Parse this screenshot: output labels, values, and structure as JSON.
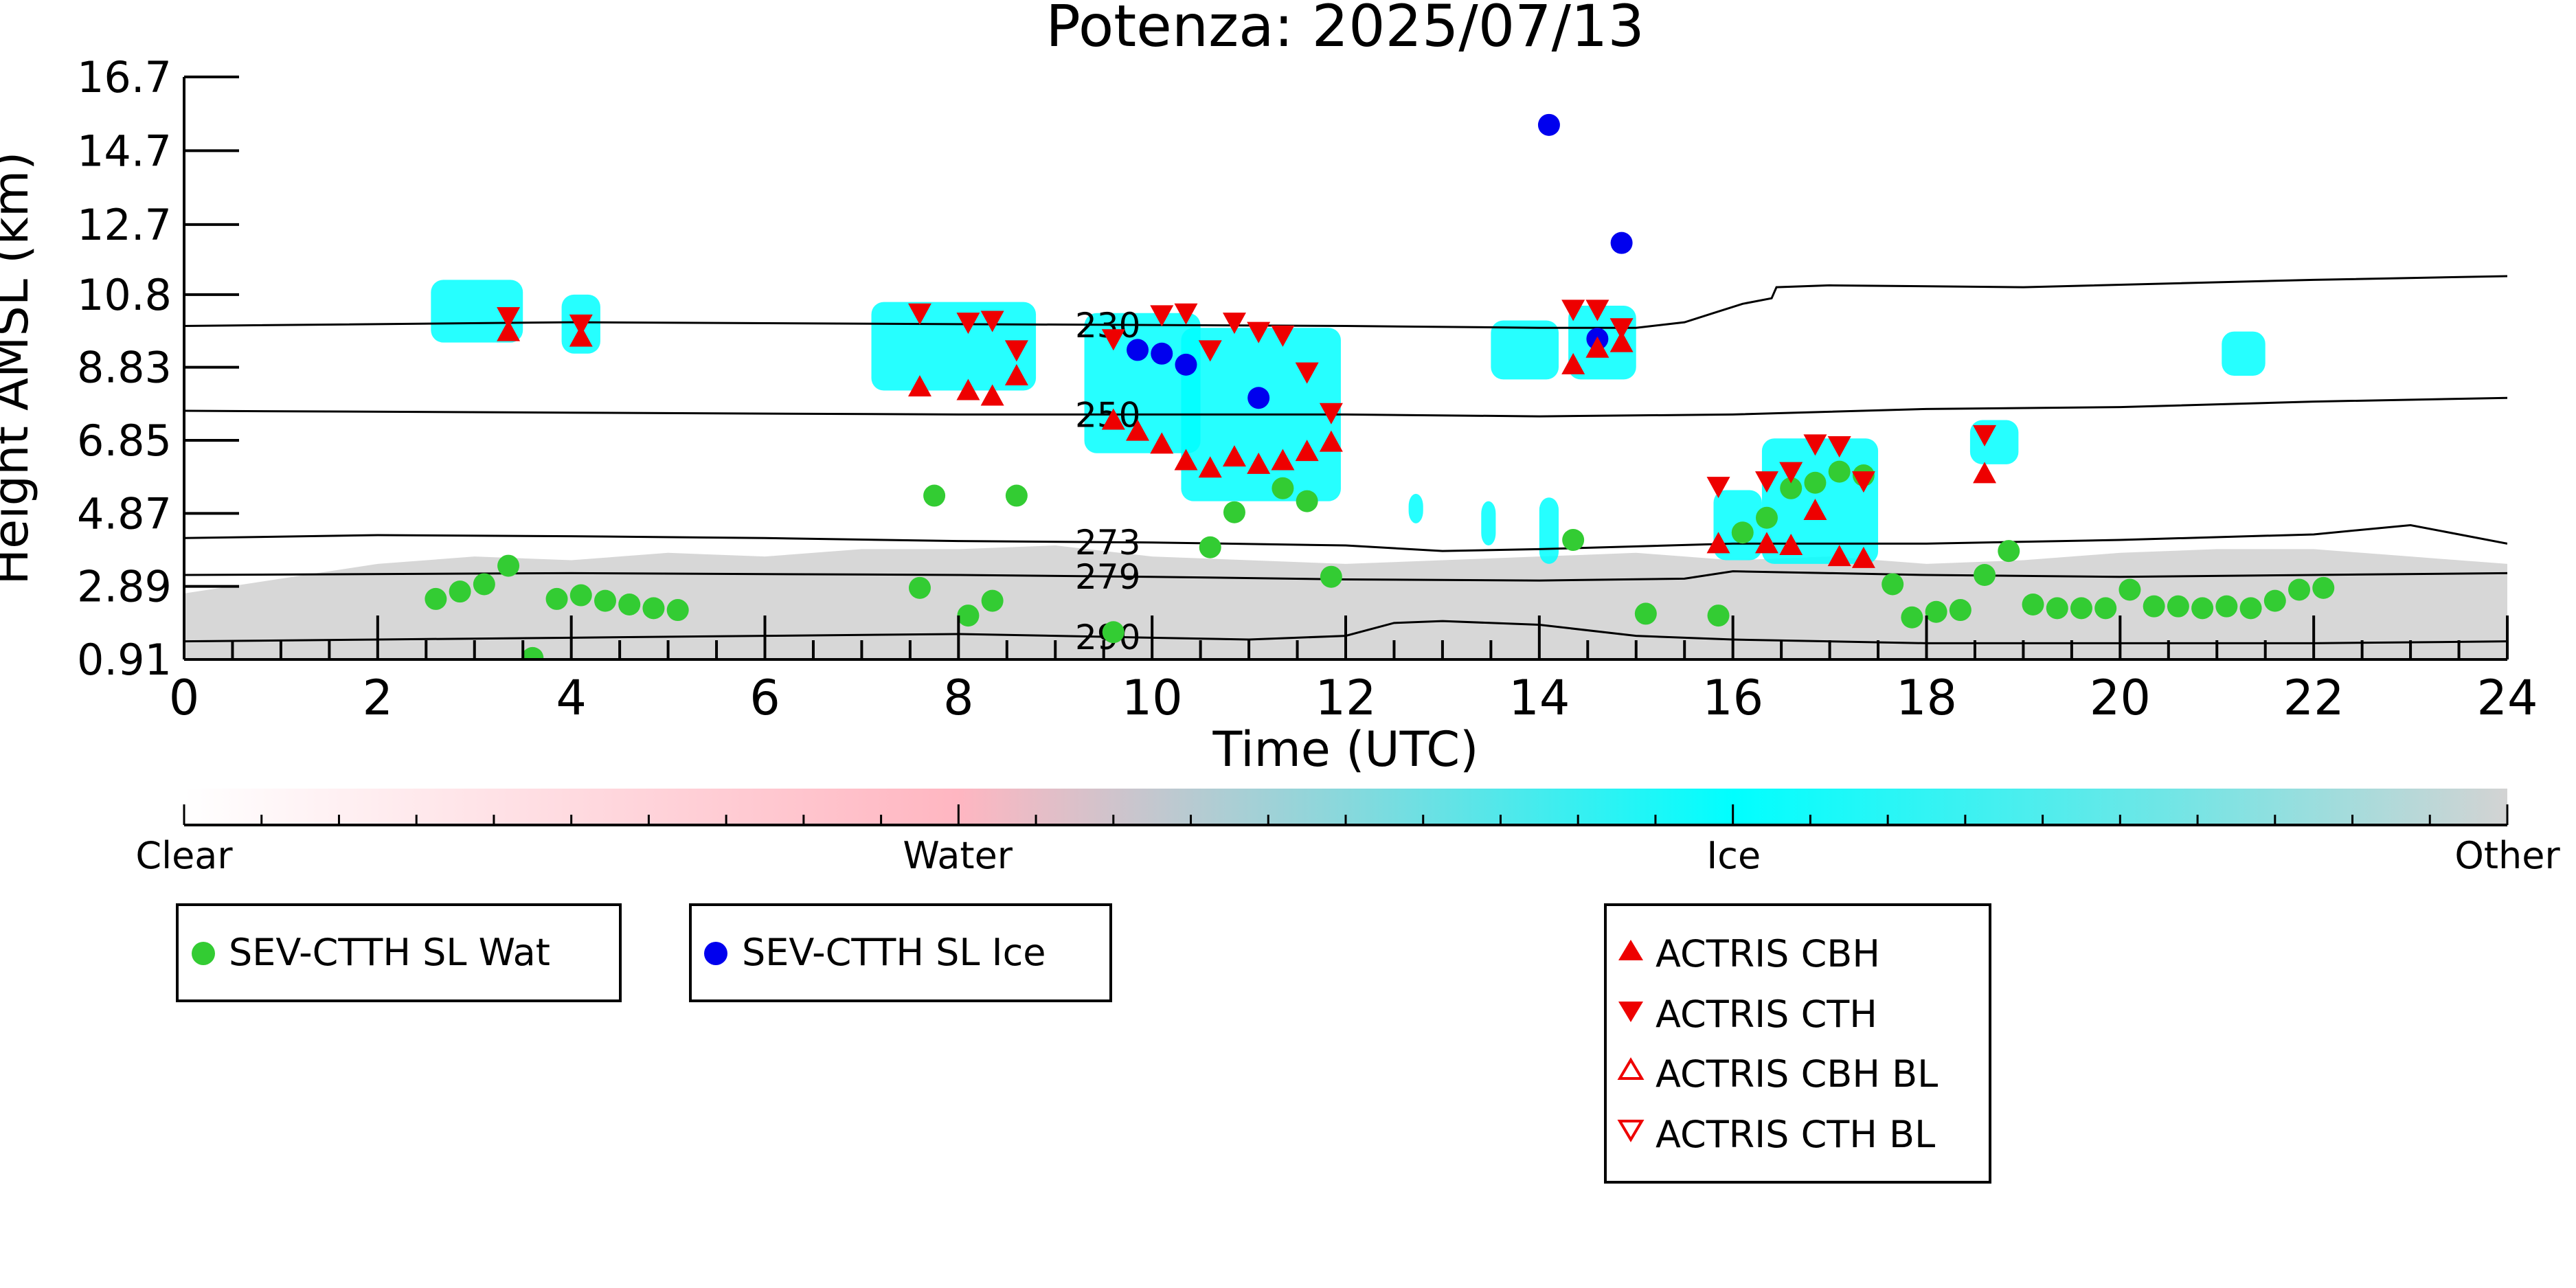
{
  "chart_data": {
    "type": "scatter",
    "title": "Potenza: 2025/07/13",
    "xlabel": "Time (UTC)",
    "ylabel": "Height AMSL (km)",
    "xlim": [
      0,
      24
    ],
    "ylim": [
      0.91,
      16.7
    ],
    "x_ticks": [
      "0",
      "2",
      "4",
      "6",
      "8",
      "10",
      "12",
      "14",
      "16",
      "18",
      "20",
      "22",
      "24"
    ],
    "y_ticks": [
      0.91,
      2.89,
      4.87,
      6.85,
      8.83,
      10.8,
      12.7,
      14.7,
      16.7
    ],
    "y_tick_labels": [
      "0.91",
      "2.89",
      "4.87",
      "6.85",
      "8.83",
      "10.8",
      "12.7",
      "14.7",
      "16.7"
    ],
    "grid": false,
    "colors": {
      "water": "#33cc33",
      "ice": "#0000ee",
      "actris": "#ee0000",
      "ice_cloud": "#00ffff",
      "other": "#d3d3d3",
      "water_class": "#ffb6c1"
    },
    "colorbar": {
      "labels": [
        "Clear",
        "Water",
        "Ice",
        "Other"
      ],
      "positions": [
        0,
        0.333,
        0.667,
        1
      ]
    },
    "legend": [
      {
        "id": "sev-wat",
        "label": "SEV-CTTH SL Wat",
        "marker": "circle",
        "color": "#33cc33"
      },
      {
        "id": "sev-ice",
        "label": "SEV-CTTH SL Ice",
        "marker": "circle",
        "color": "#0000ee"
      },
      {
        "id": "actris-cbh",
        "label": "ACTRIS CBH",
        "marker": "triangle-up",
        "color": "#ee0000"
      },
      {
        "id": "actris-cth",
        "label": "ACTRIS CTH",
        "marker": "triangle-down",
        "color": "#ee0000"
      },
      {
        "id": "actris-cbh-bl",
        "label": "ACTRIS CBH BL",
        "marker": "triangle-up-open",
        "color": "#ee0000"
      },
      {
        "id": "actris-cth-bl",
        "label": "ACTRIS CTH BL",
        "marker": "triangle-down-open",
        "color": "#ee0000"
      }
    ],
    "contours": [
      {
        "label": "230",
        "label_x": 9.5,
        "points": [
          [
            0,
            9.95
          ],
          [
            4,
            10.05
          ],
          [
            8,
            10.0
          ],
          [
            12,
            9.95
          ],
          [
            14,
            9.9
          ],
          [
            15,
            9.9
          ],
          [
            15.5,
            10.05
          ],
          [
            15.8,
            10.3
          ],
          [
            16.1,
            10.55
          ],
          [
            16.4,
            10.7
          ],
          [
            16.45,
            11.0
          ],
          [
            17,
            11.05
          ],
          [
            19,
            11.0
          ],
          [
            22,
            11.2
          ],
          [
            24,
            11.3
          ]
        ]
      },
      {
        "label": "250",
        "label_x": 9.5,
        "points": [
          [
            0,
            7.65
          ],
          [
            4,
            7.6
          ],
          [
            8,
            7.55
          ],
          [
            12,
            7.55
          ],
          [
            14,
            7.5
          ],
          [
            16,
            7.55
          ],
          [
            18,
            7.7
          ],
          [
            20,
            7.75
          ],
          [
            22,
            7.9
          ],
          [
            24,
            8.0
          ]
        ]
      },
      {
        "label": "273",
        "label_x": 9.5,
        "points": [
          [
            0,
            4.2
          ],
          [
            2,
            4.28
          ],
          [
            4,
            4.25
          ],
          [
            6,
            4.2
          ],
          [
            8,
            4.12
          ],
          [
            10,
            4.08
          ],
          [
            12,
            4.0
          ],
          [
            13,
            3.85
          ],
          [
            14,
            3.9
          ],
          [
            16,
            4.05
          ],
          [
            18,
            4.05
          ],
          [
            20,
            4.15
          ],
          [
            22,
            4.3
          ],
          [
            23,
            4.55
          ],
          [
            24,
            4.05
          ]
        ]
      },
      {
        "label": "279",
        "label_x": 9.5,
        "points": [
          [
            0,
            3.2
          ],
          [
            4,
            3.25
          ],
          [
            8,
            3.2
          ],
          [
            10,
            3.15
          ],
          [
            12,
            3.08
          ],
          [
            14,
            3.05
          ],
          [
            15.5,
            3.1
          ],
          [
            16,
            3.3
          ],
          [
            17,
            3.25
          ],
          [
            18,
            3.2
          ],
          [
            20,
            3.15
          ],
          [
            22,
            3.2
          ],
          [
            24,
            3.25
          ]
        ]
      },
      {
        "label": "290",
        "label_x": 9.5,
        "points": [
          [
            0,
            1.4
          ],
          [
            2,
            1.45
          ],
          [
            4,
            1.5
          ],
          [
            6,
            1.55
          ],
          [
            8,
            1.6
          ],
          [
            10,
            1.5
          ],
          [
            11,
            1.45
          ],
          [
            12,
            1.55
          ],
          [
            12.5,
            1.9
          ],
          [
            13,
            1.95
          ],
          [
            14,
            1.85
          ],
          [
            15,
            1.55
          ],
          [
            16,
            1.45
          ],
          [
            18,
            1.35
          ],
          [
            20,
            1.35
          ],
          [
            22,
            1.35
          ],
          [
            24,
            1.4
          ]
        ]
      }
    ],
    "series": [
      {
        "name": "SEV-CTTH SL Wat",
        "marker": "circle",
        "color": "#33cc33",
        "points": [
          [
            2.6,
            2.55
          ],
          [
            2.85,
            2.75
          ],
          [
            3.1,
            2.95
          ],
          [
            3.35,
            3.45
          ],
          [
            3.6,
            0.95
          ],
          [
            3.85,
            2.55
          ],
          [
            4.1,
            2.65
          ],
          [
            4.35,
            2.5
          ],
          [
            4.6,
            2.4
          ],
          [
            4.85,
            2.3
          ],
          [
            5.1,
            2.25
          ],
          [
            7.6,
            2.85
          ],
          [
            7.75,
            5.35
          ],
          [
            8.1,
            2.1
          ],
          [
            8.35,
            2.5
          ],
          [
            8.6,
            5.35
          ],
          [
            9.6,
            1.65
          ],
          [
            10.6,
            3.95
          ],
          [
            10.85,
            4.9
          ],
          [
            11.35,
            5.55
          ],
          [
            11.6,
            5.2
          ],
          [
            11.85,
            3.15
          ],
          [
            14.35,
            4.15
          ],
          [
            15.1,
            2.15
          ],
          [
            15.85,
            2.1
          ],
          [
            16.1,
            4.35
          ],
          [
            16.35,
            4.75
          ],
          [
            16.6,
            5.55
          ],
          [
            16.85,
            5.7
          ],
          [
            17.1,
            6.0
          ],
          [
            17.35,
            5.9
          ],
          [
            17.65,
            2.95
          ],
          [
            17.85,
            2.05
          ],
          [
            18.1,
            2.2
          ],
          [
            18.35,
            2.25
          ],
          [
            18.6,
            3.2
          ],
          [
            18.85,
            3.85
          ],
          [
            19.1,
            2.4
          ],
          [
            19.35,
            2.3
          ],
          [
            19.6,
            2.3
          ],
          [
            19.85,
            2.3
          ],
          [
            20.1,
            2.8
          ],
          [
            20.35,
            2.35
          ],
          [
            20.6,
            2.35
          ],
          [
            20.85,
            2.3
          ],
          [
            21.1,
            2.35
          ],
          [
            21.35,
            2.3
          ],
          [
            21.6,
            2.5
          ],
          [
            21.85,
            2.8
          ],
          [
            22.1,
            2.85
          ]
        ]
      },
      {
        "name": "SEV-CTTH SL Ice",
        "marker": "circle",
        "color": "#0000ee",
        "points": [
          [
            9.85,
            9.3
          ],
          [
            10.1,
            9.2
          ],
          [
            10.35,
            8.9
          ],
          [
            11.1,
            8.0
          ],
          [
            14.1,
            15.4
          ],
          [
            14.6,
            9.6
          ],
          [
            14.85,
            12.2
          ]
        ]
      },
      {
        "name": "ACTRIS CBH",
        "marker": "triangle-up",
        "color": "#ee0000",
        "points": [
          [
            3.35,
            9.8
          ],
          [
            4.1,
            9.65
          ],
          [
            7.6,
            8.3
          ],
          [
            8.1,
            8.2
          ],
          [
            8.35,
            8.05
          ],
          [
            8.6,
            8.6
          ],
          [
            9.6,
            7.4
          ],
          [
            9.85,
            7.1
          ],
          [
            10.1,
            6.75
          ],
          [
            10.35,
            6.3
          ],
          [
            10.6,
            6.1
          ],
          [
            10.85,
            6.4
          ],
          [
            11.1,
            6.2
          ],
          [
            11.35,
            6.3
          ],
          [
            11.6,
            6.55
          ],
          [
            11.85,
            6.8
          ],
          [
            14.35,
            8.9
          ],
          [
            14.6,
            9.35
          ],
          [
            14.85,
            9.5
          ],
          [
            15.85,
            4.05
          ],
          [
            16.35,
            4.05
          ],
          [
            16.6,
            4.0
          ],
          [
            16.85,
            4.95
          ],
          [
            17.1,
            3.7
          ],
          [
            17.35,
            3.65
          ],
          [
            18.6,
            5.95
          ]
        ]
      },
      {
        "name": "ACTRIS CTH",
        "marker": "triangle-down",
        "color": "#ee0000",
        "points": [
          [
            3.35,
            10.2
          ],
          [
            4.1,
            10.0
          ],
          [
            7.6,
            10.3
          ],
          [
            8.1,
            10.05
          ],
          [
            8.35,
            10.1
          ],
          [
            8.6,
            9.3
          ],
          [
            9.6,
            9.6
          ],
          [
            10.1,
            10.25
          ],
          [
            10.35,
            10.3
          ],
          [
            10.6,
            9.3
          ],
          [
            10.85,
            10.05
          ],
          [
            11.1,
            9.8
          ],
          [
            11.35,
            9.7
          ],
          [
            11.6,
            8.7
          ],
          [
            11.85,
            7.6
          ],
          [
            14.35,
            10.4
          ],
          [
            14.6,
            10.4
          ],
          [
            14.85,
            9.9
          ],
          [
            15.85,
            5.6
          ],
          [
            16.35,
            5.75
          ],
          [
            16.6,
            6.0
          ],
          [
            16.85,
            6.75
          ],
          [
            17.1,
            6.7
          ],
          [
            17.35,
            5.75
          ],
          [
            18.6,
            7.0
          ]
        ]
      },
      {
        "name": "ACTRIS CBH BL",
        "marker": "triangle-up-open",
        "color": "#ee0000",
        "points": []
      },
      {
        "name": "ACTRIS CTH BL",
        "marker": "triangle-down-open",
        "color": "#ee0000",
        "points": []
      }
    ],
    "ice_cloud_regions": [
      [
        2.55,
        3.5,
        9.5,
        11.2
      ],
      [
        3.9,
        4.3,
        9.2,
        10.8
      ],
      [
        7.1,
        8.8,
        8.2,
        10.6
      ],
      [
        9.3,
        10.5,
        6.5,
        10.3
      ],
      [
        10.3,
        11.95,
        5.2,
        9.9
      ],
      [
        13.5,
        14.2,
        8.5,
        10.1
      ],
      [
        14.3,
        15.0,
        8.5,
        10.5
      ],
      [
        15.8,
        16.3,
        3.6,
        5.5
      ],
      [
        16.3,
        17.5,
        3.5,
        6.9
      ],
      [
        18.45,
        18.95,
        6.2,
        7.4
      ],
      [
        21.05,
        21.5,
        8.6,
        9.8
      ],
      [
        12.65,
        12.8,
        4.6,
        5.4
      ],
      [
        13.4,
        13.55,
        4.0,
        5.2
      ],
      [
        14.0,
        14.2,
        3.5,
        5.3
      ]
    ],
    "other_region_top": [
      [
        0,
        2.7
      ],
      [
        1,
        3.1
      ],
      [
        2,
        3.5
      ],
      [
        3,
        3.7
      ],
      [
        4,
        3.6
      ],
      [
        5,
        3.8
      ],
      [
        6,
        3.7
      ],
      [
        7,
        3.9
      ],
      [
        8,
        3.9
      ],
      [
        9,
        4.0
      ],
      [
        10,
        3.7
      ],
      [
        11,
        3.6
      ],
      [
        12,
        3.5
      ],
      [
        13,
        3.6
      ],
      [
        14,
        3.7
      ],
      [
        15,
        3.8
      ],
      [
        16,
        3.6
      ],
      [
        17,
        3.7
      ],
      [
        18,
        3.5
      ],
      [
        19,
        3.6
      ],
      [
        20,
        3.8
      ],
      [
        21,
        3.9
      ],
      [
        22,
        3.9
      ],
      [
        23,
        3.7
      ],
      [
        24,
        3.5
      ]
    ]
  }
}
